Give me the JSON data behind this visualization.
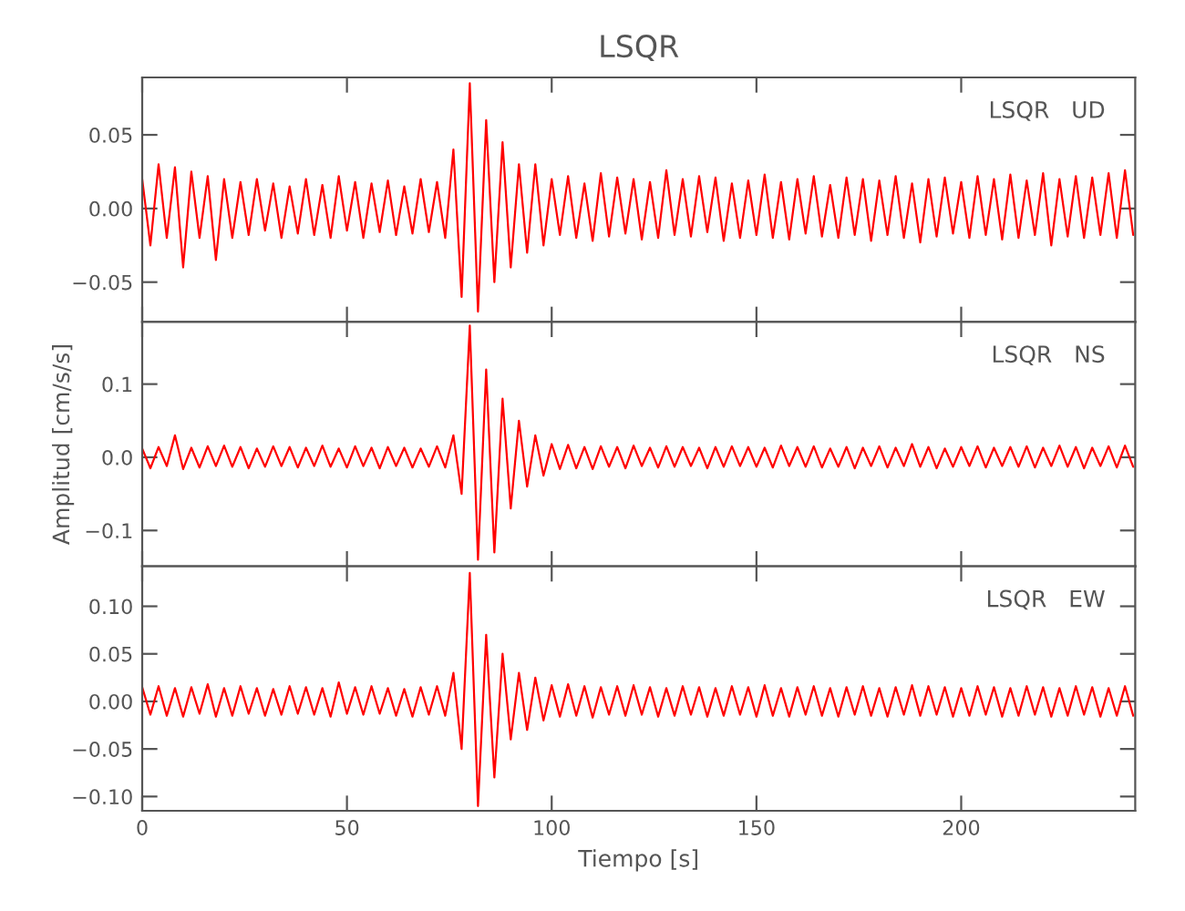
{
  "chart_data": [
    {
      "type": "line",
      "title": "LSQR",
      "annotations": [
        "LSQR   UD"
      ],
      "tick_labels": "y",
      "xlim": [
        0,
        242.5
      ],
      "xticks": [
        0,
        50,
        100,
        150,
        200
      ],
      "ylim": [
        -0.077,
        0.089
      ],
      "yticks": [
        {
          "value": -0.05,
          "label": "−0.05"
        },
        {
          "value": 0,
          "label": "0.00"
        },
        {
          "value": 0.05,
          "label": "0.05"
        }
      ],
      "x": [
        0,
        2,
        4,
        6,
        8,
        10,
        12,
        14,
        16,
        18,
        20,
        22,
        24,
        26,
        28,
        30,
        32,
        34,
        36,
        38,
        40,
        42,
        44,
        46,
        48,
        50,
        52,
        54,
        56,
        58,
        60,
        62,
        64,
        66,
        68,
        70,
        72,
        74,
        76,
        78,
        80,
        82,
        84,
        86,
        88,
        90,
        92,
        94,
        96,
        98,
        100,
        102,
        104,
        106,
        108,
        110,
        112,
        114,
        116,
        118,
        120,
        122,
        124,
        126,
        128,
        130,
        132,
        134,
        136,
        138,
        140,
        142,
        144,
        146,
        148,
        150,
        152,
        154,
        156,
        158,
        160,
        162,
        164,
        166,
        168,
        170,
        172,
        174,
        176,
        178,
        180,
        182,
        184,
        186,
        188,
        190,
        192,
        194,
        196,
        198,
        200,
        202,
        204,
        206,
        208,
        210,
        212,
        214,
        216,
        218,
        220,
        222,
        224,
        226,
        228,
        230,
        232,
        234,
        236,
        238,
        240,
        242
      ],
      "series": [
        {
          "color": "#ff0000",
          "values": [
            0.02,
            -0.025,
            0.03,
            -0.02,
            0.028,
            -0.04,
            0.025,
            -0.02,
            0.022,
            -0.035,
            0.02,
            -0.02,
            0.018,
            -0.018,
            0.02,
            -0.015,
            0.017,
            -0.02,
            0.015,
            -0.017,
            0.02,
            -0.018,
            0.016,
            -0.02,
            0.022,
            -0.015,
            0.018,
            -0.02,
            0.017,
            -0.016,
            0.019,
            -0.018,
            0.015,
            -0.017,
            0.02,
            -0.016,
            0.018,
            -0.02,
            0.04,
            -0.06,
            0.085,
            -0.07,
            0.06,
            -0.05,
            0.045,
            -0.04,
            0.03,
            -0.03,
            0.03,
            -0.025,
            0.02,
            -0.018,
            0.022,
            -0.02,
            0.017,
            -0.022,
            0.024,
            -0.019,
            0.021,
            -0.017,
            0.02,
            -0.021,
            0.018,
            -0.02,
            0.026,
            -0.018,
            0.02,
            -0.019,
            0.022,
            -0.016,
            0.021,
            -0.022,
            0.017,
            -0.02,
            0.019,
            -0.018,
            0.023,
            -0.02,
            0.018,
            -0.021,
            0.02,
            -0.017,
            0.022,
            -0.019,
            0.016,
            -0.02,
            0.021,
            -0.018,
            0.02,
            -0.022,
            0.019,
            -0.018,
            0.022,
            -0.02,
            0.017,
            -0.023,
            0.02,
            -0.019,
            0.021,
            -0.017,
            0.018,
            -0.02,
            0.022,
            -0.018,
            0.02,
            -0.021,
            0.023,
            -0.02,
            0.019,
            -0.018,
            0.024,
            -0.025,
            0.02,
            -0.019,
            0.022,
            -0.02,
            0.021,
            -0.018,
            0.024,
            -0.02,
            0.026,
            -0.018
          ]
        }
      ]
    },
    {
      "type": "line",
      "ylabel": "Amplitud [cm/s/s]",
      "annotations": [
        "LSQR   NS"
      ],
      "tick_labels": "y",
      "xlim": [
        0,
        242.5
      ],
      "xticks": [
        0,
        50,
        100,
        150,
        200
      ],
      "ylim": [
        -0.149,
        0.185
      ],
      "yticks": [
        {
          "value": -0.1,
          "label": "−0.1"
        },
        {
          "value": 0,
          "label": "0.0"
        },
        {
          "value": 0.1,
          "label": "0.1"
        }
      ],
      "x": [
        0,
        2,
        4,
        6,
        8,
        10,
        12,
        14,
        16,
        18,
        20,
        22,
        24,
        26,
        28,
        30,
        32,
        34,
        36,
        38,
        40,
        42,
        44,
        46,
        48,
        50,
        52,
        54,
        56,
        58,
        60,
        62,
        64,
        66,
        68,
        70,
        72,
        74,
        76,
        78,
        80,
        82,
        84,
        86,
        88,
        90,
        92,
        94,
        96,
        98,
        100,
        102,
        104,
        106,
        108,
        110,
        112,
        114,
        116,
        118,
        120,
        122,
        124,
        126,
        128,
        130,
        132,
        134,
        136,
        138,
        140,
        142,
        144,
        146,
        148,
        150,
        152,
        154,
        156,
        158,
        160,
        162,
        164,
        166,
        168,
        170,
        172,
        174,
        176,
        178,
        180,
        182,
        184,
        186,
        188,
        190,
        192,
        194,
        196,
        198,
        200,
        202,
        204,
        206,
        208,
        210,
        212,
        214,
        216,
        218,
        220,
        222,
        224,
        226,
        228,
        230,
        232,
        234,
        236,
        238,
        240,
        242
      ],
      "series": [
        {
          "color": "#ff0000",
          "values": [
            0.012,
            -0.015,
            0.014,
            -0.012,
            0.03,
            -0.016,
            0.013,
            -0.014,
            0.015,
            -0.012,
            0.016,
            -0.013,
            0.014,
            -0.015,
            0.012,
            -0.013,
            0.015,
            -0.012,
            0.014,
            -0.014,
            0.013,
            -0.012,
            0.016,
            -0.013,
            0.012,
            -0.014,
            0.015,
            -0.012,
            0.013,
            -0.015,
            0.014,
            -0.012,
            0.013,
            -0.014,
            0.012,
            -0.013,
            0.015,
            -0.014,
            0.03,
            -0.05,
            0.18,
            -0.14,
            0.12,
            -0.13,
            0.08,
            -0.07,
            0.05,
            -0.04,
            0.03,
            -0.025,
            0.018,
            -0.016,
            0.017,
            -0.015,
            0.014,
            -0.016,
            0.015,
            -0.013,
            0.014,
            -0.015,
            0.016,
            -0.012,
            0.013,
            -0.014,
            0.015,
            -0.013,
            0.014,
            -0.012,
            0.013,
            -0.015,
            0.014,
            -0.013,
            0.015,
            -0.012,
            0.014,
            -0.013,
            0.013,
            -0.014,
            0.016,
            -0.012,
            0.014,
            -0.013,
            0.015,
            -0.014,
            0.012,
            -0.013,
            0.014,
            -0.015,
            0.013,
            -0.012,
            0.015,
            -0.014,
            0.013,
            -0.012,
            0.018,
            -0.013,
            0.014,
            -0.015,
            0.012,
            -0.013,
            0.014,
            -0.012,
            0.015,
            -0.014,
            0.013,
            -0.012,
            0.014,
            -0.013,
            0.015,
            -0.014,
            0.013,
            -0.012,
            0.016,
            -0.013,
            0.014,
            -0.015,
            0.013,
            -0.012,
            0.015,
            -0.014,
            0.016,
            -0.013
          ]
        }
      ]
    },
    {
      "type": "line",
      "xlabel": "Tiempo [s]",
      "annotations": [
        "LSQR   EW"
      ],
      "xlim": [
        0,
        242.5
      ],
      "xticks": [
        0,
        50,
        100,
        150,
        200
      ],
      "ylim": [
        -0.115,
        0.142
      ],
      "yticks": [
        {
          "value": -0.1,
          "label": "−0.10"
        },
        {
          "value": -0.05,
          "label": "−0.05"
        },
        {
          "value": 0,
          "label": "0.00"
        },
        {
          "value": 0.05,
          "label": "0.05"
        },
        {
          "value": 0.1,
          "label": "0.10"
        }
      ],
      "x": [
        0,
        2,
        4,
        6,
        8,
        10,
        12,
        14,
        16,
        18,
        20,
        22,
        24,
        26,
        28,
        30,
        32,
        34,
        36,
        38,
        40,
        42,
        44,
        46,
        48,
        50,
        52,
        54,
        56,
        58,
        60,
        62,
        64,
        66,
        68,
        70,
        72,
        74,
        76,
        78,
        80,
        82,
        84,
        86,
        88,
        90,
        92,
        94,
        96,
        98,
        100,
        102,
        104,
        106,
        108,
        110,
        112,
        114,
        116,
        118,
        120,
        122,
        124,
        126,
        128,
        130,
        132,
        134,
        136,
        138,
        140,
        142,
        144,
        146,
        148,
        150,
        152,
        154,
        156,
        158,
        160,
        162,
        164,
        166,
        168,
        170,
        172,
        174,
        176,
        178,
        180,
        182,
        184,
        186,
        188,
        190,
        192,
        194,
        196,
        198,
        200,
        202,
        204,
        206,
        208,
        210,
        212,
        214,
        216,
        218,
        220,
        222,
        224,
        226,
        228,
        230,
        232,
        234,
        236,
        238,
        240,
        242
      ],
      "series": [
        {
          "color": "#ff0000",
          "values": [
            0.015,
            -0.014,
            0.016,
            -0.015,
            0.014,
            -0.016,
            0.015,
            -0.013,
            0.018,
            -0.016,
            0.014,
            -0.015,
            0.016,
            -0.013,
            0.014,
            -0.015,
            0.013,
            -0.014,
            0.016,
            -0.013,
            0.015,
            -0.014,
            0.014,
            -0.016,
            0.02,
            -0.013,
            0.015,
            -0.014,
            0.016,
            -0.013,
            0.014,
            -0.015,
            0.013,
            -0.016,
            0.015,
            -0.014,
            0.016,
            -0.015,
            0.03,
            -0.05,
            0.135,
            -0.11,
            0.07,
            -0.08,
            0.05,
            -0.04,
            0.03,
            -0.03,
            0.025,
            -0.02,
            0.017,
            -0.016,
            0.018,
            -0.015,
            0.016,
            -0.017,
            0.015,
            -0.014,
            0.016,
            -0.015,
            0.017,
            -0.014,
            0.015,
            -0.016,
            0.014,
            -0.015,
            0.016,
            -0.014,
            0.015,
            -0.016,
            0.014,
            -0.015,
            0.016,
            -0.014,
            0.015,
            -0.016,
            0.017,
            -0.015,
            0.014,
            -0.016,
            0.015,
            -0.014,
            0.016,
            -0.015,
            0.014,
            -0.016,
            0.015,
            -0.014,
            0.016,
            -0.015,
            0.014,
            -0.016,
            0.015,
            -0.014,
            0.017,
            -0.015,
            0.016,
            -0.014,
            0.015,
            -0.016,
            0.014,
            -0.015,
            0.016,
            -0.014,
            0.015,
            -0.016,
            0.014,
            -0.015,
            0.016,
            -0.014,
            0.015,
            -0.016,
            0.014,
            -0.015,
            0.016,
            -0.014,
            0.015,
            -0.016,
            0.014,
            -0.015,
            0.016,
            -0.015
          ]
        }
      ]
    }
  ]
}
